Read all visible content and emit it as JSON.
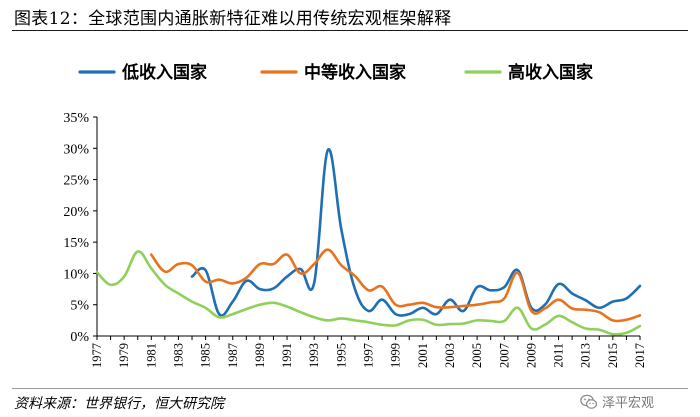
{
  "header": {
    "title": "图表12：全球范围内通胀新特征难以用传统宏观框架解释"
  },
  "footer": {
    "source": "资料来源：世界银行，恒大研究院",
    "watermark": "泽平宏观",
    "watermark_icon": "wechat-icon"
  },
  "chart_data": {
    "type": "line",
    "title": "",
    "xlabel": "",
    "ylabel": "",
    "ylim": [
      0,
      35
    ],
    "yticks": [
      0,
      5,
      10,
      15,
      20,
      25,
      30,
      35
    ],
    "ytick_labels": [
      "0%",
      "5%",
      "10%",
      "15%",
      "20%",
      "25%",
      "30%",
      "35%"
    ],
    "xlim": [
      1977,
      2017
    ],
    "xtick_labels": [
      "1977",
      "1979",
      "1981",
      "1983",
      "1985",
      "1987",
      "1989",
      "1991",
      "1993",
      "1995",
      "1997",
      "1999",
      "2001",
      "2003",
      "2005",
      "2007",
      "2009",
      "2011",
      "2013",
      "2015",
      "2017"
    ],
    "grid": false,
    "legend_position": "top",
    "series": [
      {
        "name": "低收入国家",
        "color": "#1f6fb5",
        "x": [
          1984,
          1985,
          1986,
          1987,
          1988,
          1989,
          1990,
          1991,
          1992,
          1993,
          1994,
          1995,
          1996,
          1997,
          1998,
          1999,
          2000,
          2001,
          2002,
          2003,
          2004,
          2005,
          2006,
          2007,
          2008,
          2009,
          2010,
          2011,
          2012,
          2013,
          2014,
          2015,
          2016,
          2017
        ],
        "values": [
          9.5,
          10.5,
          3.5,
          5.5,
          8.8,
          7.5,
          7.6,
          9.5,
          10.7,
          8.5,
          29.7,
          17.0,
          7.5,
          4.0,
          5.8,
          3.5,
          3.5,
          4.5,
          3.5,
          5.8,
          4.0,
          7.8,
          7.3,
          7.8,
          10.5,
          4.5,
          5.0,
          8.3,
          6.8,
          5.7,
          4.5,
          5.5,
          6.0,
          8.0
        ]
      },
      {
        "name": "中等收入国家",
        "color": "#e8731f",
        "x": [
          1981,
          1982,
          1983,
          1984,
          1985,
          1986,
          1987,
          1988,
          1989,
          1990,
          1991,
          1992,
          1993,
          1994,
          1995,
          1996,
          1997,
          1998,
          1999,
          2000,
          2001,
          2002,
          2003,
          2004,
          2005,
          2006,
          2007,
          2008,
          2009,
          2010,
          2011,
          2012,
          2013,
          2014,
          2015,
          2016,
          2017
        ],
        "values": [
          13.0,
          10.3,
          11.5,
          11.3,
          8.7,
          9.0,
          8.4,
          9.3,
          11.5,
          11.5,
          13.0,
          10.0,
          11.5,
          13.8,
          11.3,
          9.6,
          7.3,
          7.9,
          5.0,
          5.0,
          5.3,
          4.6,
          4.6,
          4.8,
          5.0,
          5.4,
          6.0,
          10.1,
          4.0,
          4.4,
          5.8,
          4.4,
          4.2,
          3.8,
          2.5,
          2.6,
          3.3
        ]
      },
      {
        "name": "高收入国家",
        "color": "#8fd05a",
        "x": [
          1977,
          1978,
          1979,
          1980,
          1981,
          1982,
          1983,
          1984,
          1985,
          1986,
          1987,
          1988,
          1989,
          1990,
          1991,
          1992,
          1993,
          1994,
          1995,
          1996,
          1997,
          1998,
          1999,
          2000,
          2001,
          2002,
          2003,
          2004,
          2005,
          2006,
          2007,
          2008,
          2009,
          2010,
          2011,
          2012,
          2013,
          2014,
          2015,
          2016,
          2017
        ],
        "values": [
          10.2,
          8.2,
          9.5,
          13.5,
          10.8,
          8.2,
          6.8,
          5.5,
          4.5,
          3.0,
          3.5,
          4.3,
          5.0,
          5.3,
          4.7,
          3.8,
          3.0,
          2.5,
          2.8,
          2.5,
          2.2,
          1.8,
          1.7,
          2.5,
          2.6,
          1.8,
          1.9,
          2.0,
          2.5,
          2.4,
          2.4,
          4.5,
          1.2,
          1.8,
          3.2,
          2.2,
          1.2,
          1.0,
          0.3,
          0.5,
          1.6
        ]
      }
    ]
  }
}
